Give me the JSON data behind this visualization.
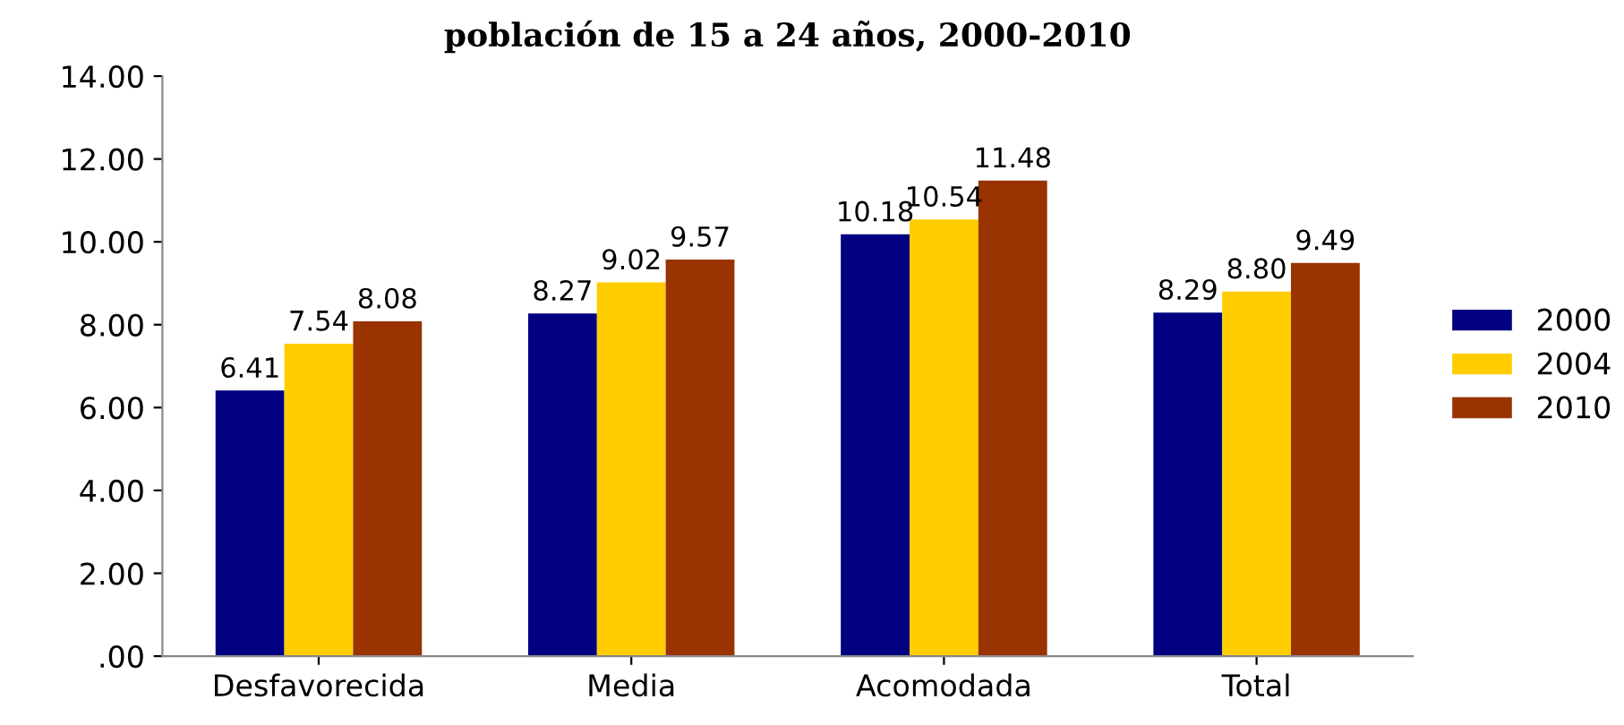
{
  "chart_data": {
    "type": "bar",
    "title": "población de 15 a 24 años, 2000-2010",
    "categories": [
      "Desfavorecida",
      "Media",
      "Acomodada",
      "Total"
    ],
    "series": [
      {
        "name": "2000",
        "color": "#000080",
        "values": [
          6.41,
          8.27,
          10.18,
          8.29
        ],
        "value_labels": [
          "6.41",
          "8.27",
          "10.18",
          "8.29"
        ]
      },
      {
        "name": "2004",
        "color": "#ffcc00",
        "values": [
          7.54,
          9.02,
          10.54,
          8.8
        ],
        "value_labels": [
          "7.54",
          "9.02",
          "10.54",
          "8.80"
        ]
      },
      {
        "name": "2010",
        "color": "#993300",
        "values": [
          8.08,
          9.57,
          11.48,
          9.49
        ],
        "value_labels": [
          "8.08",
          "9.57",
          "11.48",
          "9.49"
        ]
      }
    ],
    "ylim": [
      0,
      14
    ],
    "yticks": [
      {
        "value": 0,
        "label": ".00"
      },
      {
        "value": 2,
        "label": "2.00"
      },
      {
        "value": 4,
        "label": "4.00"
      },
      {
        "value": 6,
        "label": "6.00"
      },
      {
        "value": 8,
        "label": "8.00"
      },
      {
        "value": 10,
        "label": "10.00"
      },
      {
        "value": 12,
        "label": "12.00"
      },
      {
        "value": 14,
        "label": "14.00"
      }
    ],
    "grid": false,
    "legend": "right"
  }
}
